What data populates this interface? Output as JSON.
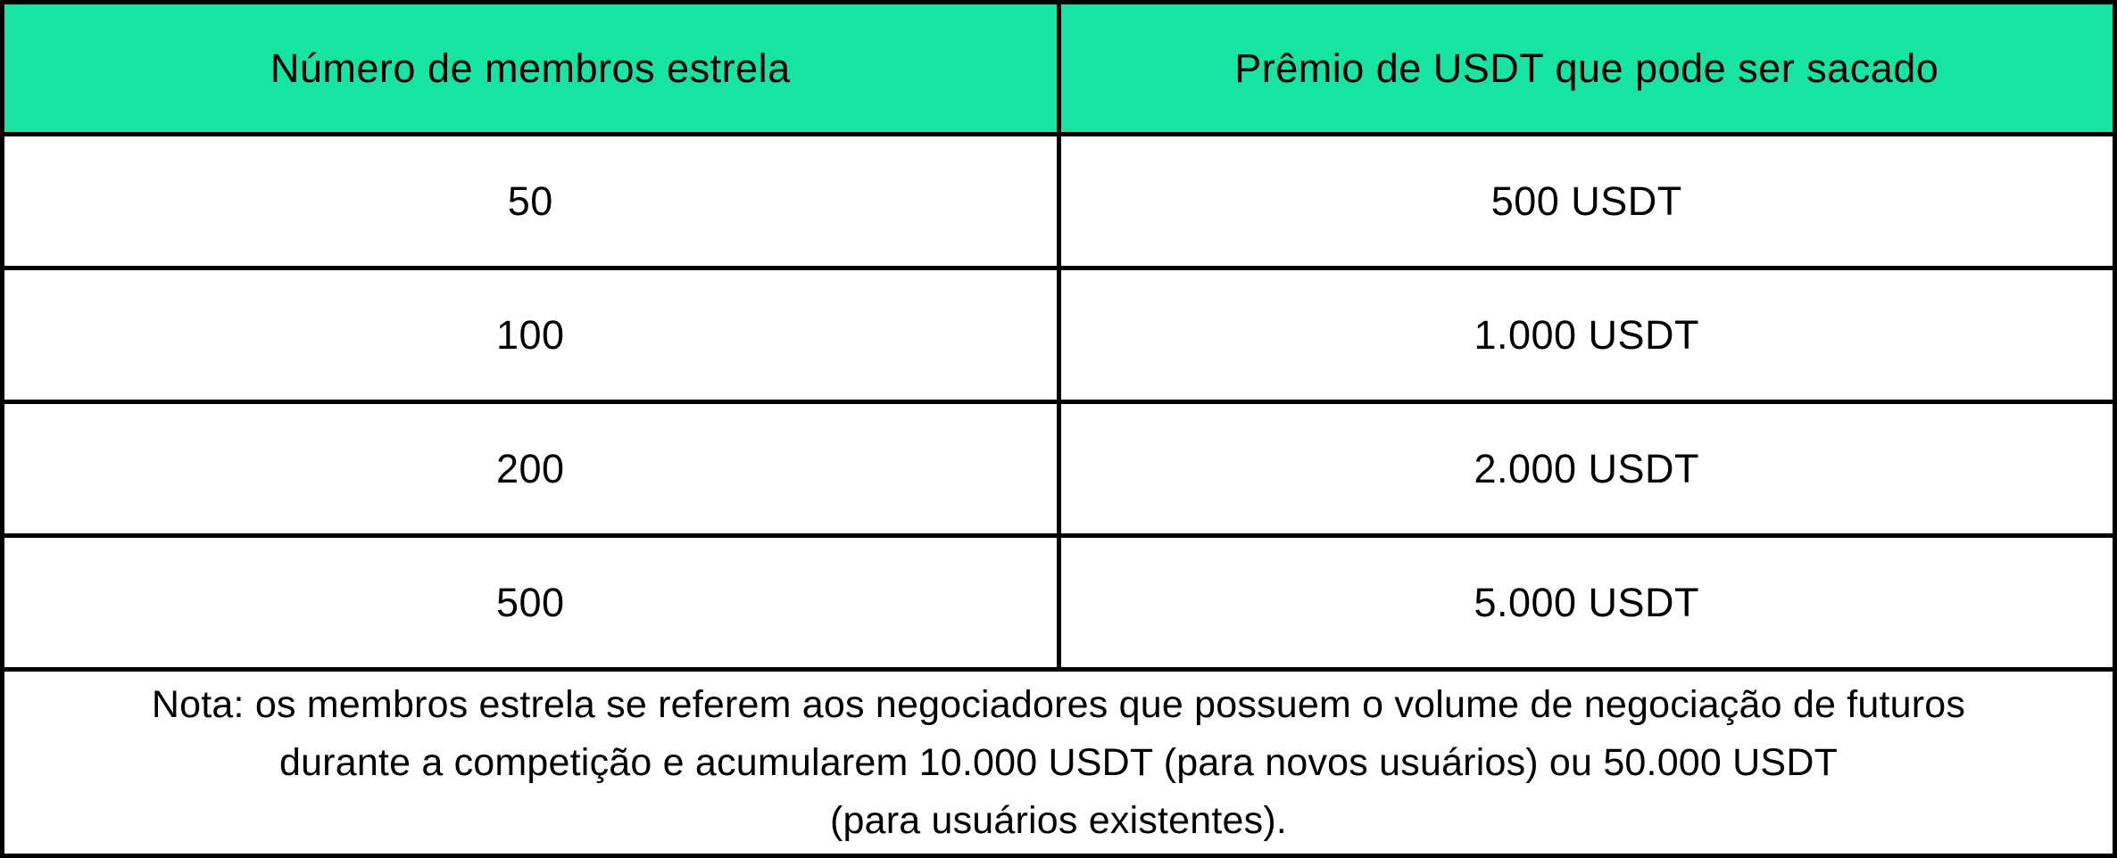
{
  "colors": {
    "header_bg": "#17e3a2",
    "border": "#000000",
    "cell_bg": "#ffffff",
    "text": "#000000"
  },
  "table": {
    "headers": [
      "Número de membros estrela",
      "Prêmio de USDT que pode ser sacado"
    ],
    "rows": [
      {
        "members": "50",
        "prize": "500 USDT"
      },
      {
        "members": "100",
        "prize": "1.000 USDT"
      },
      {
        "members": "200",
        "prize": "2.000 USDT"
      },
      {
        "members": "500",
        "prize": "5.000 USDT"
      }
    ],
    "note": {
      "line1": "Nota: os membros estrela se referem aos negociadores que possuem o volume de negociação de futuros",
      "line2": "durante a competição e acumularem 10.000 USDT (para novos usuários) ou 50.000 USDT",
      "line3": "(para usuários existentes)."
    }
  }
}
